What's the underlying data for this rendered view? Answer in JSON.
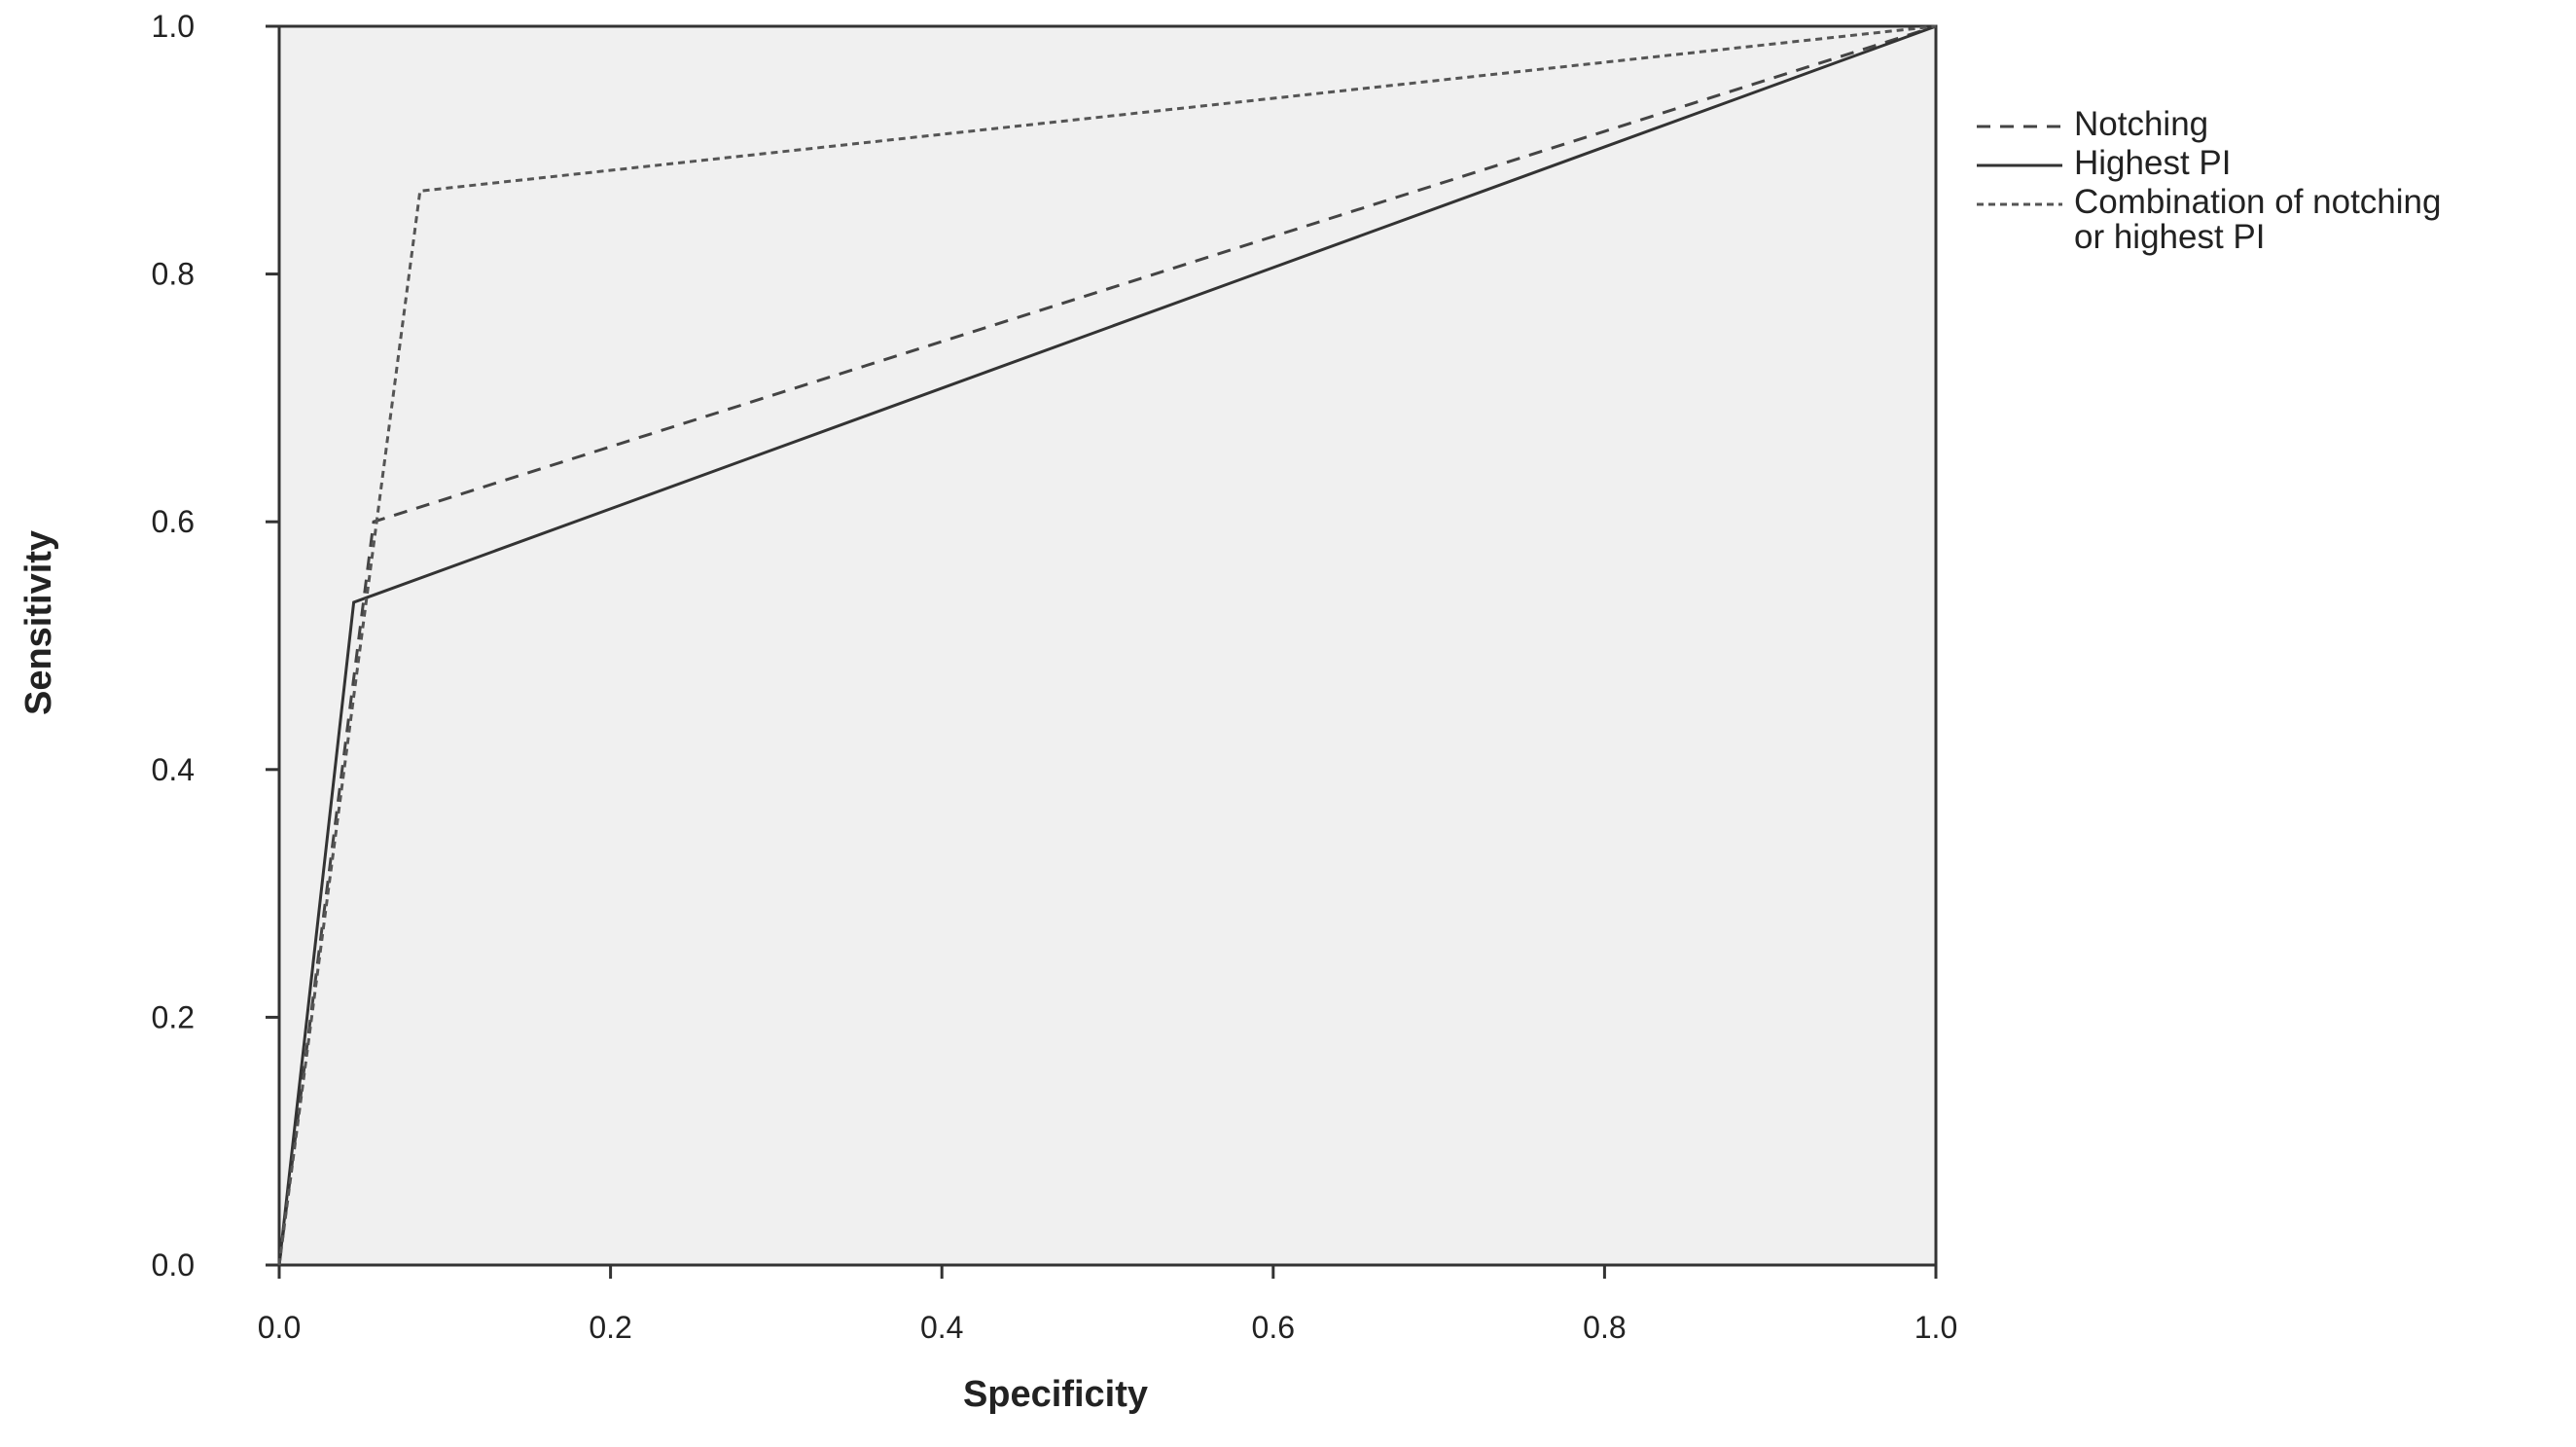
{
  "chart_data": {
    "type": "line",
    "x_label": "Specificity",
    "y_label": "Sensitivity",
    "xlim": [
      0,
      1
    ],
    "ylim": [
      0,
      1
    ],
    "xticks": [
      {
        "value": 0,
        "label": "0.0"
      },
      0.2,
      0.4,
      0.6,
      0.8,
      {
        "value": 1,
        "label": "1.0"
      }
    ],
    "yticks": [
      {
        "value": 0,
        "label": "0.0"
      },
      0.2,
      0.4,
      0.6,
      0.8,
      {
        "value": 1,
        "label": "1.0"
      }
    ],
    "grid": false,
    "legend": "right",
    "series": [
      {
        "name": "Notching",
        "color": "#444444",
        "dash": "dashed",
        "x": [
          0,
          0.057,
          1
        ],
        "values": [
          0,
          0.6,
          1
        ]
      },
      {
        "name": "Highest PI",
        "color": "#333333",
        "dash": "solid",
        "x": [
          0,
          0.045,
          1
        ],
        "values": [
          0,
          0.535,
          1
        ]
      },
      {
        "name": "Combination of notching or highest PI",
        "color": "#555555",
        "dash": "dotted",
        "x": [
          0,
          0.085,
          1
        ],
        "values": [
          0,
          0.867,
          1
        ]
      }
    ]
  }
}
